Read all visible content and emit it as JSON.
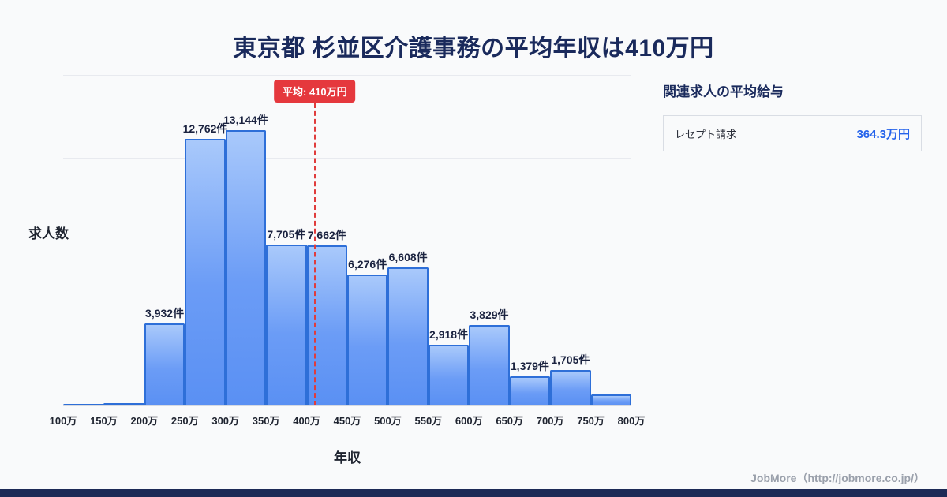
{
  "page": {
    "title": "東京都 杉並区介護事務の平均年収は410万円",
    "footer": "JobMore（http://jobmore.co.jp/）"
  },
  "chart_data": {
    "type": "bar",
    "title": "東京都 杉並区介護事務の平均年収は410万円",
    "xlabel": "年収",
    "ylabel": "求人数",
    "x_ticks": [
      "100万",
      "150万",
      "200万",
      "250万",
      "300万",
      "350万",
      "400万",
      "450万",
      "500万",
      "550万",
      "600万",
      "650万",
      "700万",
      "750万",
      "800万"
    ],
    "categories": [
      "100万-150万",
      "150万-200万",
      "200万-250万",
      "250万-300万",
      "300万-350万",
      "350万-400万",
      "400万-450万",
      "450万-500万",
      "500万-550万",
      "550万-600万",
      "600万-650万",
      "650万-700万",
      "700万-750万",
      "750万-800万"
    ],
    "values": [
      60,
      120,
      3932,
      12762,
      13144,
      7705,
      7662,
      6276,
      6608,
      2918,
      3829,
      1379,
      1705,
      520
    ],
    "bar_labels": [
      "",
      "",
      "3,932件",
      "12,762件",
      "13,144件",
      "7,705件",
      "7,662件",
      "6,276件",
      "6,608件",
      "2,918件",
      "3,829件",
      "1,379件",
      "1,705件",
      ""
    ],
    "x_range": [
      100,
      800
    ],
    "ylim": [
      0,
      15800
    ],
    "grid": true,
    "legend": "none",
    "average_line": {
      "x": 410,
      "label": "平均: 410万円",
      "color": "#e03c3c"
    },
    "bar_fill_top": "#a9c9fb",
    "bar_fill_bottom": "#5a90f3",
    "bar_border": "#2e6fd8"
  },
  "side_panel": {
    "heading": "関連求人の平均給与",
    "items": [
      {
        "label": "レセプト請求",
        "value": "364.3万円"
      }
    ],
    "value_color": "#2563eb"
  }
}
